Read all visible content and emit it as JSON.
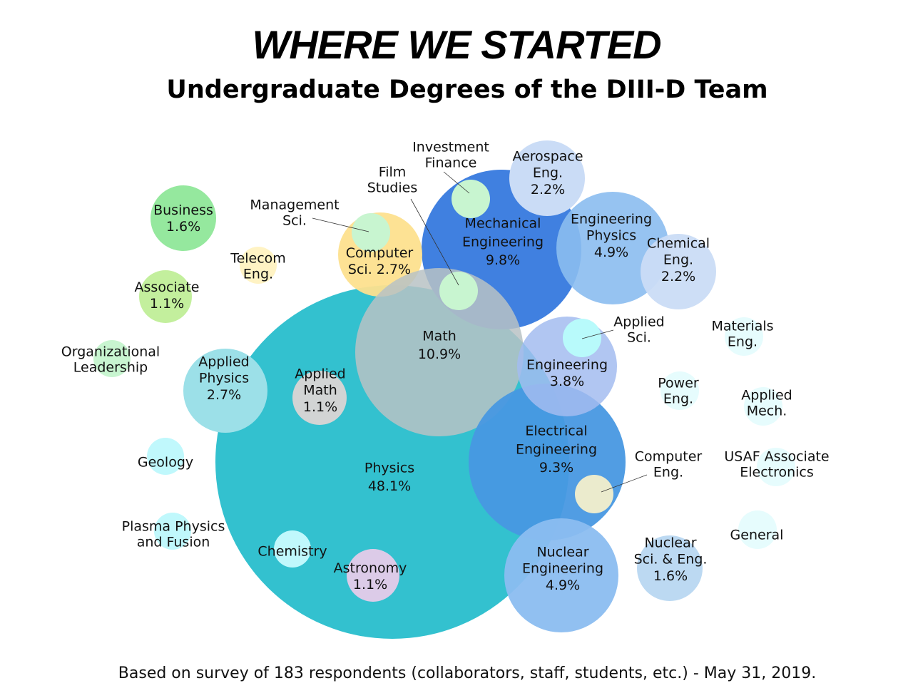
{
  "chart_data": {
    "type": "bubble",
    "title": "WHERE WE STARTED",
    "subtitle": "Undergraduate Degrees of the DIII-D Team",
    "footnote": "Based on survey of 183 respondents (collaborators, staff, students, etc.) - May 31, 2019.",
    "bubbles": [
      {
        "name": [
          "Physics"
        ],
        "value": "48.1%",
        "color": "#33c1cf"
      },
      {
        "name": [
          "Mechanical",
          "Engineering"
        ],
        "value": "9.8%",
        "color": "#4080e0"
      },
      {
        "name": [
          "Computer",
          "Sci. 2.7%"
        ],
        "value": "",
        "color": "#fde08e"
      },
      {
        "name": [
          "Math"
        ],
        "value": "10.9%",
        "color": "#b9c2c4"
      },
      {
        "name": [
          "Engineering",
          "Physics"
        ],
        "value": "4.9%",
        "color": "#8bbdf0"
      },
      {
        "name": [
          "Aerospace",
          "Eng."
        ],
        "value": "2.2%",
        "color": "#cadcf6"
      },
      {
        "name": [
          "Chemical",
          "Eng."
        ],
        "value": "2.2%",
        "color": "#cadcf6"
      },
      {
        "name": [
          "Electrical",
          "Engineering"
        ],
        "value": "9.3%",
        "color": "#4898e2"
      },
      {
        "name": [
          "Engineering"
        ],
        "value": "3.8%",
        "color": "#a3bcf0"
      },
      {
        "name": [
          "Nuclear",
          "Engineering"
        ],
        "value": "4.9%",
        "color": "#8bbdf0"
      },
      {
        "name": [
          "Nuclear",
          "Sci. & Eng."
        ],
        "value": "1.6%",
        "color": "#bcd9f2"
      },
      {
        "name": [
          "Business"
        ],
        "value": "1.6%",
        "color": "#95e89e"
      },
      {
        "name": [
          "Associate"
        ],
        "value": "1.1%",
        "color": "#c3ef9d"
      },
      {
        "name": [
          "Applied",
          "Physics"
        ],
        "value": "2.7%",
        "color": "#9ce0e8"
      },
      {
        "name": [
          "Applied",
          "Math"
        ],
        "value": "1.1%",
        "color": "#d2d4d4"
      },
      {
        "name": [
          "Astronomy"
        ],
        "value": "1.1%",
        "color": "#dccbe8"
      },
      {
        "name": [
          "Investment",
          "Finance"
        ],
        "value": "",
        "color": "#c8f5d0"
      },
      {
        "name": [
          "Film",
          "Studies"
        ],
        "value": "",
        "color": "#c8f5d0"
      },
      {
        "name": [
          "Management",
          "Sci."
        ],
        "value": "",
        "color": "#c8f5d0"
      },
      {
        "name": [
          "Telecom",
          "Eng."
        ],
        "value": "",
        "color": "#fff3c4"
      },
      {
        "name": [
          "Organizational",
          "Leadership"
        ],
        "value": "",
        "color": "#c8f5d0"
      },
      {
        "name": [
          "Geology"
        ],
        "value": "",
        "color": "#c0f8fc"
      },
      {
        "name": [
          "Plasma Physics",
          "and Fusion"
        ],
        "value": "",
        "color": "#c0f8fc"
      },
      {
        "name": [
          "Chemistry"
        ],
        "value": "",
        "color": "#c0f8fc"
      },
      {
        "name": [
          "Applied",
          "Sci."
        ],
        "value": "",
        "color": "#b8fafb"
      },
      {
        "name": [
          "Computer",
          "Eng."
        ],
        "value": "",
        "color": "#ebebcd"
      },
      {
        "name": [
          "Materials",
          "Eng."
        ],
        "value": "",
        "color": "#e6fcfd"
      },
      {
        "name": [
          "Power",
          "Eng."
        ],
        "value": "",
        "color": "#e6fcfd"
      },
      {
        "name": [
          "Applied",
          "Mech."
        ],
        "value": "",
        "color": "#e6fcfd"
      },
      {
        "name": [
          "USAF Associate",
          "Electronics"
        ],
        "value": "",
        "color": "#e6fcfd"
      },
      {
        "name": [
          "General"
        ],
        "value": "",
        "color": "#e6fcfd"
      }
    ]
  }
}
